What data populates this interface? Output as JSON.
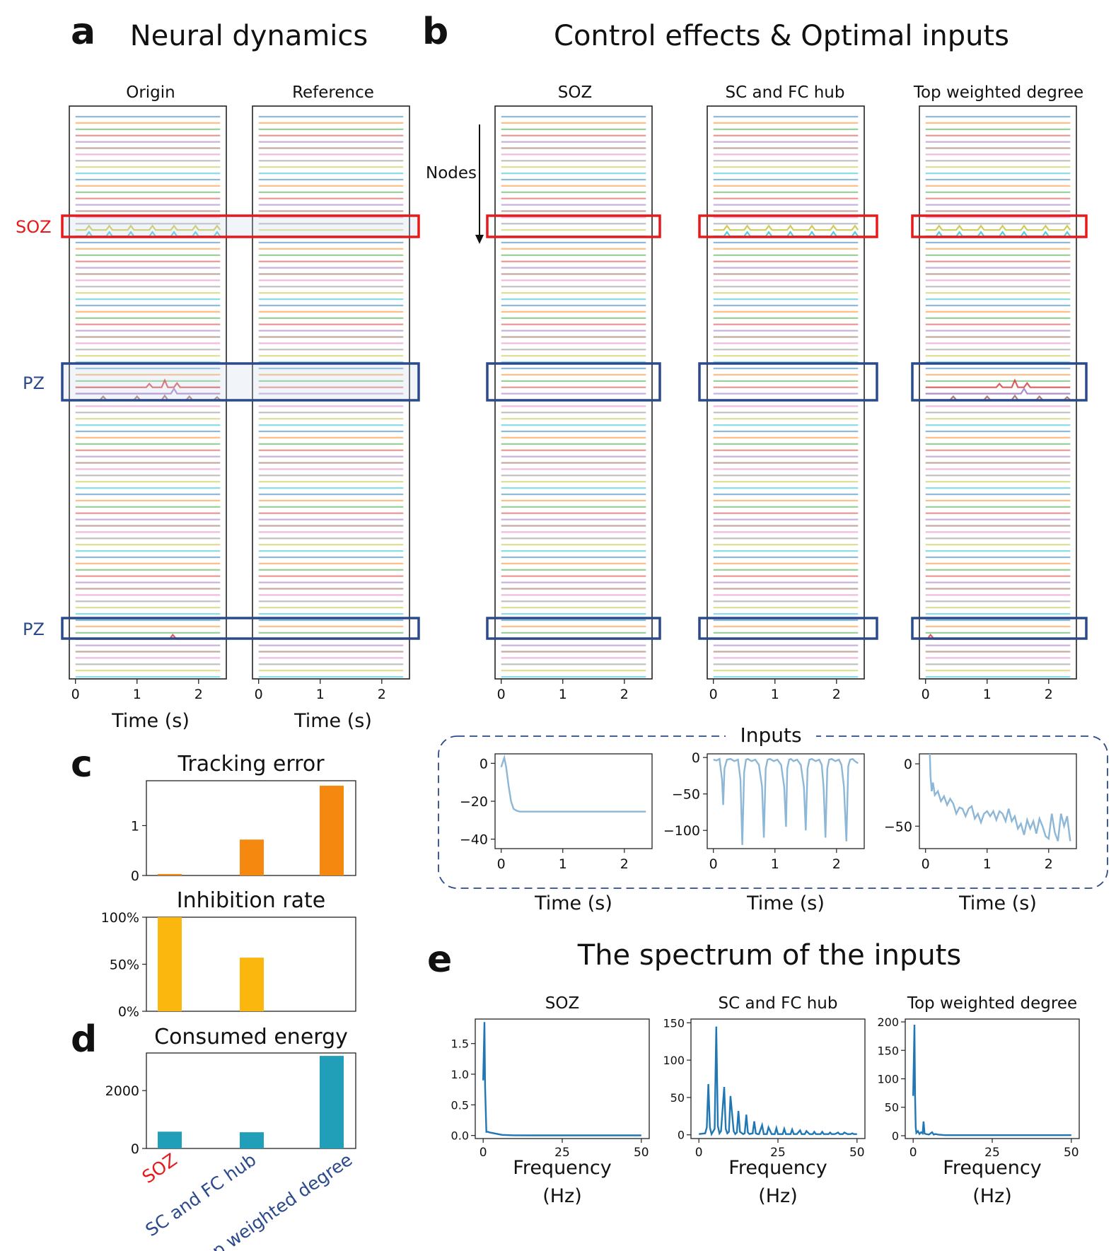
{
  "panels": {
    "a": {
      "letter": "a",
      "title": "Neural dynamics"
    },
    "b": {
      "letter": "b",
      "title": "Control effects & Optimal inputs"
    },
    "c": {
      "letter": "c"
    },
    "d": {
      "letter": "d"
    },
    "e": {
      "letter": "e",
      "title": "The spectrum of the inputs"
    }
  },
  "annotations": {
    "soz": "SOZ",
    "pz1": "PZ",
    "pz2": "PZ",
    "nodes": "Nodes",
    "inputs_title": "Inputs"
  },
  "colors": {
    "soz_box": "#e8191b",
    "pz_box": "#2b4a8b",
    "tracking": "#f5880e",
    "inhibition": "#fbb70e",
    "energy": "#219eb8",
    "inputs_line": "#8cb7d6",
    "spectrum": "#1f77b4",
    "soz_label": "#e8191b",
    "pz_label": "#2b4a8b",
    "trace_palette": [
      "#1f77b4",
      "#ff7f0e",
      "#2ca02c",
      "#d62728",
      "#9467bd",
      "#8c564b",
      "#e377c2",
      "#7f7f7f",
      "#bcbd22",
      "#17becf"
    ]
  },
  "chart_data": [
    {
      "id": "dynamics",
      "type": "line",
      "panels": [
        "Origin",
        "Reference",
        "SOZ",
        "SC and FC hub",
        "Top weighted degree"
      ],
      "xlabel": "Time (s)",
      "xticks": [
        0,
        1,
        2
      ],
      "xlim": [
        -0.1,
        2.45
      ],
      "n_traces": 90,
      "soz_band_traces": [
        18,
        19
      ],
      "pz_band_traces": [
        43,
        44,
        45
      ],
      "pz2_band_traces": [
        83,
        84
      ],
      "activity": {
        "Origin": {
          "soz": true,
          "pz1": true,
          "pz2": true
        },
        "Reference": {
          "soz": false,
          "pz1": false,
          "pz2": false
        },
        "SOZ": {
          "soz": false,
          "pz1": false,
          "pz2": false
        },
        "SC and FC hub": {
          "soz": true,
          "pz1": false,
          "pz2": false
        },
        "Top weighted degree": {
          "soz": true,
          "pz1": true,
          "pz2": true
        }
      }
    },
    {
      "id": "tracking_error",
      "type": "bar",
      "title": "Tracking error",
      "categories": [
        "SOZ",
        "SC and FC hub",
        "Top weighted degree"
      ],
      "values": [
        0.03,
        0.72,
        1.8
      ],
      "ylim": [
        0,
        1.9
      ],
      "yticks": [
        0,
        1
      ]
    },
    {
      "id": "inhibition_rate",
      "type": "bar",
      "title": "Inhibition rate",
      "categories": [
        "SOZ",
        "SC and FC hub",
        "Top weighted degree"
      ],
      "values": [
        100,
        57,
        0
      ],
      "ylim": [
        0,
        100
      ],
      "yticks": [
        "0%",
        "50%",
        "100%"
      ]
    },
    {
      "id": "consumed_energy",
      "type": "bar",
      "title": "Consumed energy",
      "categories": [
        "SOZ",
        "SC and FC hub",
        "Top weighted degree"
      ],
      "values": [
        580,
        560,
        3200
      ],
      "ylim": [
        0,
        3300
      ],
      "yticks": [
        0,
        2000
      ]
    },
    {
      "id": "inputs",
      "type": "line",
      "xlabel": "Time (s)",
      "series": [
        {
          "name": "SOZ",
          "ylim": [
            -45,
            5
          ],
          "yticks": [
            0,
            -20,
            -40
          ],
          "x": [
            0,
            0.02,
            0.05,
            0.08,
            0.12,
            0.16,
            0.2,
            0.25,
            0.3,
            0.4,
            0.6,
            1.0,
            1.5,
            2.0,
            2.35
          ],
          "y": [
            -2,
            0,
            3,
            -2,
            -12,
            -20,
            -24,
            -25,
            -25.5,
            -25.5,
            -25.5,
            -25.5,
            -25.5,
            -25.5,
            -25.5
          ]
        },
        {
          "name": "SC and FC hub",
          "ylim": [
            -125,
            5
          ],
          "yticks": [
            0,
            -50,
            -100
          ],
          "x": [
            0,
            0.05,
            0.1,
            0.14,
            0.16,
            0.18,
            0.22,
            0.28,
            0.34,
            0.4,
            0.44,
            0.47,
            0.5,
            0.53,
            0.56,
            0.62,
            0.68,
            0.74,
            0.79,
            0.82,
            0.85,
            0.88,
            0.92,
            0.98,
            1.04,
            1.1,
            1.15,
            1.18,
            1.2,
            1.23,
            1.26,
            1.3,
            1.36,
            1.42,
            1.47,
            1.5,
            1.53,
            1.56,
            1.6,
            1.66,
            1.72,
            1.76,
            1.79,
            1.82,
            1.85,
            1.88,
            1.92,
            1.98,
            2.04,
            2.08,
            2.12,
            2.16,
            2.19,
            2.22,
            2.26,
            2.3,
            2.35
          ],
          "y": [
            -3,
            -4,
            -2,
            -30,
            -65,
            -15,
            -3,
            -2,
            -5,
            -3,
            -30,
            -120,
            -20,
            -3,
            -2,
            -5,
            -3,
            -10,
            -40,
            -110,
            -15,
            -3,
            -2,
            -5,
            -3,
            -10,
            -40,
            -95,
            -15,
            -3,
            -2,
            -5,
            -3,
            -10,
            -40,
            -100,
            -15,
            -3,
            -2,
            -5,
            -3,
            -10,
            -40,
            -110,
            -15,
            -3,
            -2,
            -5,
            -3,
            -10,
            -40,
            -115,
            -12,
            -3,
            -2,
            -5,
            -8
          ]
        },
        {
          "name": "Top weighted degree",
          "ylim": [
            -68,
            8
          ],
          "yticks": [
            0,
            -50
          ],
          "x": [
            0.07,
            0.08,
            0.1,
            0.12,
            0.15,
            0.2,
            0.25,
            0.3,
            0.35,
            0.4,
            0.45,
            0.5,
            0.55,
            0.6,
            0.65,
            0.7,
            0.75,
            0.8,
            0.85,
            0.9,
            0.95,
            1.0,
            1.05,
            1.1,
            1.15,
            1.2,
            1.25,
            1.3,
            1.35,
            1.4,
            1.45,
            1.5,
            1.55,
            1.6,
            1.65,
            1.7,
            1.75,
            1.8,
            1.85,
            1.9,
            1.95,
            2.0,
            2.05,
            2.1,
            2.15,
            2.2,
            2.25,
            2.3,
            2.35
          ],
          "y": [
            8,
            -10,
            -22,
            -15,
            -25,
            -22,
            -30,
            -26,
            -33,
            -28,
            -32,
            -40,
            -35,
            -36,
            -42,
            -36,
            -34,
            -44,
            -40,
            -47,
            -40,
            -38,
            -42,
            -38,
            -45,
            -38,
            -40,
            -46,
            -36,
            -46,
            -42,
            -52,
            -48,
            -57,
            -45,
            -52,
            -46,
            -56,
            -44,
            -50,
            -58,
            -60,
            -40,
            -55,
            -62,
            -40,
            -50,
            -42,
            -62
          ]
        }
      ]
    },
    {
      "id": "spectrum",
      "type": "line",
      "xlabel": "Frequency",
      "xlabel_unit": "(Hz)",
      "xticks": [
        0,
        25,
        50
      ],
      "series": [
        {
          "name": "SOZ",
          "ylim": [
            -0.05,
            1.9
          ],
          "yticks": [
            0.0,
            0.5,
            1.0,
            1.5
          ],
          "x": [
            0,
            0.4,
            0.6,
            1,
            1.5,
            2,
            3,
            4,
            5,
            6,
            8,
            10,
            15,
            20,
            25,
            30,
            35,
            40,
            45,
            50
          ],
          "y": [
            0.9,
            1.85,
            0.8,
            0.06,
            0.06,
            0.05,
            0.04,
            0.03,
            0.02,
            0.01,
            0.005,
            0.003,
            0.002,
            0.002,
            0.002,
            0.002,
            0.002,
            0.002,
            0.002,
            0.002
          ]
        },
        {
          "name": "SC and FC hub",
          "ylim": [
            -5,
            155
          ],
          "yticks": [
            0,
            50,
            100,
            150
          ],
          "x": [
            0,
            2,
            2.5,
            3,
            3.5,
            4,
            5,
            5.5,
            6,
            6.5,
            7,
            8,
            8.5,
            9,
            9.5,
            10,
            11,
            11.5,
            12,
            12.5,
            13,
            14,
            14.5,
            15,
            15.5,
            16,
            17,
            17.5,
            18,
            18.5,
            19,
            20,
            20.5,
            21,
            21.5,
            22,
            23,
            23.5,
            24,
            24.5,
            25,
            26,
            26.5,
            27,
            27.5,
            28,
            29,
            29.5,
            30,
            30.5,
            31,
            32,
            32.5,
            33,
            33.5,
            34,
            35,
            35.5,
            36,
            36.5,
            37,
            38,
            38.5,
            39,
            39.5,
            40,
            41,
            41.5,
            42,
            42.5,
            43,
            44,
            44.5,
            45,
            45.5,
            46,
            47,
            47.5,
            48,
            48.5,
            49,
            50
          ],
          "y": [
            1,
            2,
            10,
            68,
            10,
            1,
            8,
            145,
            12,
            2,
            5,
            64,
            8,
            2,
            4,
            52,
            5,
            1,
            3,
            32,
            4,
            1,
            2,
            27,
            3,
            1,
            2,
            18,
            2,
            1,
            1,
            13,
            1,
            1,
            1,
            10,
            1,
            1,
            1,
            9,
            1,
            1,
            1,
            8,
            1,
            1,
            1,
            7,
            1,
            1,
            1,
            6,
            1,
            1,
            1,
            5,
            1,
            1,
            1,
            4,
            1,
            1,
            1,
            4,
            1,
            1,
            1,
            3,
            1,
            1,
            1,
            3,
            1,
            1,
            1,
            3,
            1,
            1,
            1,
            2,
            1,
            1
          ]
        },
        {
          "name": "Top weighted degree",
          "ylim": [
            -5,
            205
          ],
          "yticks": [
            0,
            50,
            100,
            150,
            200
          ],
          "x": [
            0,
            0.4,
            0.6,
            0.8,
            1,
            1.5,
            2,
            2.5,
            3,
            3.3,
            3.6,
            4,
            5,
            6,
            6.5,
            7,
            8,
            10,
            12,
            15,
            20,
            25,
            30,
            35,
            40,
            45,
            50
          ],
          "y": [
            70,
            195,
            70,
            15,
            5,
            8,
            3,
            6,
            4,
            25,
            4,
            3,
            2,
            6,
            2,
            3,
            2,
            1,
            1,
            1,
            1,
            1,
            1,
            1,
            1,
            1,
            1
          ]
        }
      ]
    }
  ]
}
